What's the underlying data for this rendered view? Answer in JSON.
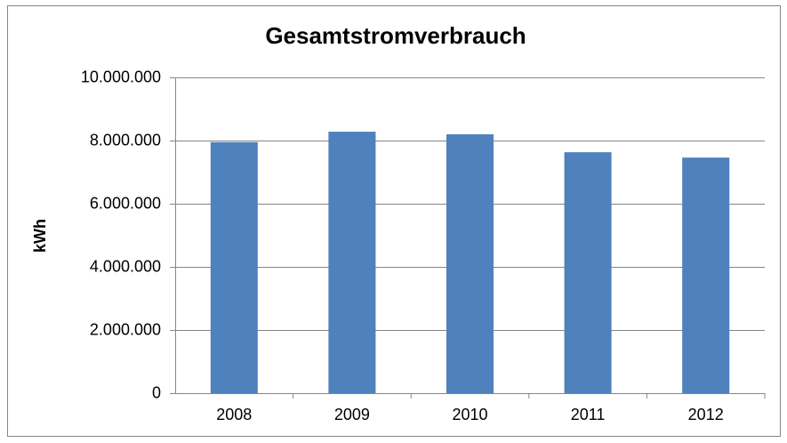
{
  "chart_data": {
    "type": "bar",
    "title": "Gesamtstromverbrauch",
    "ylabel": "kWh",
    "categories": [
      "2008",
      "2009",
      "2010",
      "2011",
      "2012"
    ],
    "values": [
      7950000,
      8280000,
      8200000,
      7630000,
      7460000
    ],
    "color": "#4f81bd",
    "ylim": [
      0,
      10000000
    ],
    "yticks": [
      0,
      {
        "value": 2000000,
        "label": "2.000.000"
      },
      {
        "value": 4000000,
        "label": "4.000.000"
      },
      {
        "value": 6000000,
        "label": "6.000.000"
      },
      {
        "value": 8000000,
        "label": "8.000.000"
      },
      {
        "value": 10000000,
        "label": "10.000.000"
      }
    ],
    "grid": true
  }
}
